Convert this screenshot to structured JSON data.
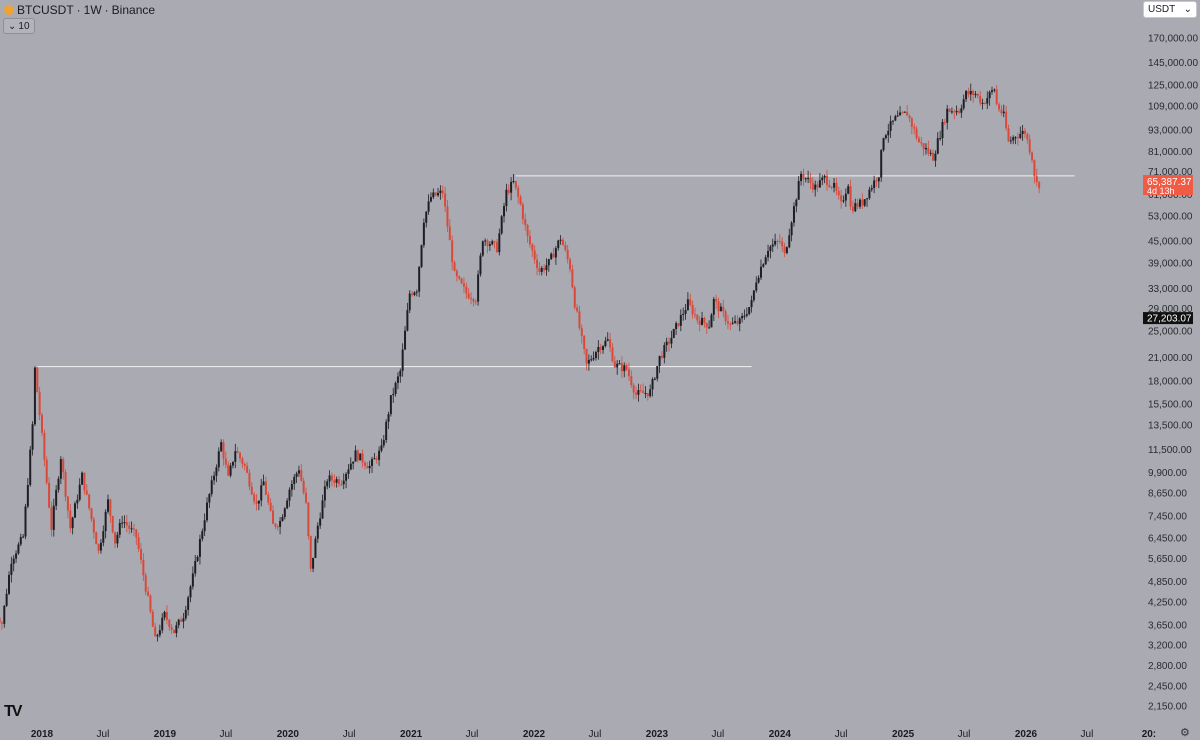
{
  "header": {
    "symbol": "BTCUSDT",
    "interval": "1W",
    "exchange": "Binance",
    "sep": "·",
    "interval_btn": "10"
  },
  "currency": "USDT",
  "price_label": {
    "price": "65,387.37",
    "countdown": "4d 13h",
    "color": "#ef5b45"
  },
  "crosshair_label": "27,203.07",
  "colors": {
    "up": "#1e1f24",
    "down": "#d9493a",
    "background": "#a9aab2",
    "level": "#f2f2f2"
  },
  "icons": {
    "tv_logo": "tradingview-logo-icon",
    "settings": "gear-icon",
    "chevron": "chevron-down-icon"
  },
  "chart_data": {
    "type": "candlestick",
    "y_scale": "log",
    "y_ticks": [
      170000,
      145000,
      125000,
      109000,
      93000,
      81000,
      71000,
      61000,
      53000,
      45000,
      39000,
      33000,
      29000,
      25000,
      21000,
      18000,
      15500,
      13500,
      11500,
      9900,
      8650,
      7450,
      6450,
      5650,
      4850,
      4250,
      3650,
      3200,
      2800,
      2450,
      2150
    ],
    "y_tick_labels": [
      "170,000.00",
      "145,000.00",
      "125,000.00",
      "109,000.00",
      "93,000.00",
      "81,000.00",
      "71,000.00",
      "61,000.00",
      "53,000.00",
      "45,000.00",
      "39,000.00",
      "33,000.00",
      "29,000.00",
      "25,000.00",
      "21,000.00",
      "18,000.00",
      "15,500.00",
      "13,500.00",
      "11,500.00",
      "9,900.00",
      "8,650.00",
      "7,450.00",
      "6,450.00",
      "5,650.00",
      "4,850.00",
      "4,250.00",
      "3,650.00",
      "3,200.00",
      "2,800.00",
      "2,450.00",
      "2,150.00"
    ],
    "x_ticks": [
      {
        "label": "2018",
        "date": "2018-01-01",
        "bold": true
      },
      {
        "label": "Jul",
        "date": "2018-07-01",
        "bold": false
      },
      {
        "label": "2019",
        "date": "2019-01-01",
        "bold": true
      },
      {
        "label": "Jul",
        "date": "2019-07-01",
        "bold": false
      },
      {
        "label": "2020",
        "date": "2020-01-01",
        "bold": true
      },
      {
        "label": "Jul",
        "date": "2020-07-01",
        "bold": false
      },
      {
        "label": "2021",
        "date": "2021-01-01",
        "bold": true
      },
      {
        "label": "Jul",
        "date": "2021-07-01",
        "bold": false
      },
      {
        "label": "2022",
        "date": "2022-01-01",
        "bold": true
      },
      {
        "label": "Jul",
        "date": "2022-07-01",
        "bold": false
      },
      {
        "label": "2023",
        "date": "2023-01-01",
        "bold": true
      },
      {
        "label": "Jul",
        "date": "2023-07-01",
        "bold": false
      },
      {
        "label": "2024",
        "date": "2024-01-01",
        "bold": true
      },
      {
        "label": "Jul",
        "date": "2024-07-01",
        "bold": false
      },
      {
        "label": "2025",
        "date": "2025-01-01",
        "bold": true
      },
      {
        "label": "Jul",
        "date": "2025-07-01",
        "bold": false
      },
      {
        "label": "2026",
        "date": "2026-01-01",
        "bold": true
      },
      {
        "label": "Jul",
        "date": "2026-07-01",
        "bold": false
      },
      {
        "label": "20:",
        "date": "2027-01-01",
        "bold": true
      }
    ],
    "anchors": [
      [
        "2017-08-14",
        4100
      ],
      [
        "2017-09-11",
        3700
      ],
      [
        "2017-10-09",
        5600
      ],
      [
        "2017-11-13",
        6500
      ],
      [
        "2017-12-11",
        13500
      ],
      [
        "2017-12-18",
        19500
      ],
      [
        "2018-01-01",
        14500
      ],
      [
        "2018-02-05",
        6900
      ],
      [
        "2018-03-05",
        11000
      ],
      [
        "2018-04-02",
        6900
      ],
      [
        "2018-05-07",
        9700
      ],
      [
        "2018-06-25",
        5900
      ],
      [
        "2018-07-23",
        8200
      ],
      [
        "2018-08-13",
        6300
      ],
      [
        "2018-09-03",
        7300
      ],
      [
        "2018-10-15",
        6500
      ],
      [
        "2018-11-19",
        4300
      ],
      [
        "2018-12-10",
        3300
      ],
      [
        "2019-01-07",
        3900
      ],
      [
        "2019-02-04",
        3500
      ],
      [
        "2019-03-04",
        3900
      ],
      [
        "2019-04-01",
        5000
      ],
      [
        "2019-05-13",
        8000
      ],
      [
        "2019-06-24",
        12000
      ],
      [
        "2019-07-15",
        9500
      ],
      [
        "2019-08-05",
        11500
      ],
      [
        "2019-09-02",
        10300
      ],
      [
        "2019-10-07",
        8000
      ],
      [
        "2019-10-28",
        9300
      ],
      [
        "2019-11-25",
        7000
      ],
      [
        "2019-12-16",
        7200
      ],
      [
        "2020-01-13",
        8900
      ],
      [
        "2020-02-10",
        10200
      ],
      [
        "2020-03-02",
        8000
      ],
      [
        "2020-03-16",
        5200
      ],
      [
        "2020-04-06",
        7000
      ],
      [
        "2020-05-04",
        9500
      ],
      [
        "2020-06-15",
        9400
      ],
      [
        "2020-07-27",
        11200
      ],
      [
        "2020-09-07",
        10300
      ],
      [
        "2020-10-12",
        11500
      ],
      [
        "2020-11-09",
        16000
      ],
      [
        "2020-12-07",
        19200
      ],
      [
        "2021-01-04",
        32000
      ],
      [
        "2021-01-25",
        33000
      ],
      [
        "2021-02-15",
        52000
      ],
      [
        "2021-03-08",
        60000
      ],
      [
        "2021-04-12",
        62000
      ],
      [
        "2021-05-17",
        36000
      ],
      [
        "2021-06-21",
        32000
      ],
      [
        "2021-07-19",
        31000
      ],
      [
        "2021-08-09",
        46000
      ],
      [
        "2021-09-20",
        43000
      ],
      [
        "2021-10-18",
        62000
      ],
      [
        "2021-11-08",
        66000
      ],
      [
        "2021-11-29",
        57000
      ],
      [
        "2021-12-20",
        46000
      ],
      [
        "2022-01-24",
        37000
      ],
      [
        "2022-02-21",
        39000
      ],
      [
        "2022-03-28",
        46000
      ],
      [
        "2022-04-25",
        38000
      ],
      [
        "2022-05-09",
        30000
      ],
      [
        "2022-06-13",
        20000
      ],
      [
        "2022-07-18",
        22500
      ],
      [
        "2022-08-15",
        23500
      ],
      [
        "2022-09-05",
        20000
      ],
      [
        "2022-10-10",
        19500
      ],
      [
        "2022-11-07",
        16500
      ],
      [
        "2022-12-19",
        16800
      ],
      [
        "2023-01-16",
        21000
      ],
      [
        "2023-02-20",
        24000
      ],
      [
        "2023-03-13",
        26500
      ],
      [
        "2023-04-10",
        30000
      ],
      [
        "2023-05-08",
        27000
      ],
      [
        "2023-06-12",
        26000
      ],
      [
        "2023-06-26",
        30500
      ],
      [
        "2023-08-14",
        26000
      ],
      [
        "2023-09-11",
        26500
      ],
      [
        "2023-10-16",
        30000
      ],
      [
        "2023-10-30",
        35000
      ],
      [
        "2023-12-04",
        43000
      ],
      [
        "2024-01-08",
        45000
      ],
      [
        "2024-01-22",
        41000
      ],
      [
        "2024-02-12",
        52000
      ],
      [
        "2024-03-11",
        70000
      ],
      [
        "2024-04-22",
        64000
      ],
      [
        "2024-05-20",
        68000
      ],
      [
        "2024-06-17",
        64000
      ],
      [
        "2024-07-08",
        57000
      ],
      [
        "2024-07-29",
        66000
      ],
      [
        "2024-08-05",
        56000
      ],
      [
        "2024-09-09",
        58000
      ],
      [
        "2024-09-30",
        63000
      ],
      [
        "2024-10-28",
        70000
      ],
      [
        "2024-11-11",
        90000
      ],
      [
        "2024-12-16",
        100000
      ],
      [
        "2025-01-20",
        104000
      ],
      [
        "2025-02-24",
        86000
      ],
      [
        "2025-04-07",
        78000
      ],
      [
        "2025-05-19",
        106000
      ],
      [
        "2025-06-23",
        106000
      ],
      [
        "2025-07-14",
        118000
      ],
      [
        "2025-08-11",
        118000
      ],
      [
        "2025-09-01",
        111000
      ],
      [
        "2025-10-06",
        122000
      ],
      [
        "2025-10-13",
        110000
      ],
      [
        "2025-11-03",
        102000
      ],
      [
        "2025-11-17",
        86000
      ],
      [
        "2025-12-08",
        90000
      ],
      [
        "2026-01-05",
        92000
      ],
      [
        "2026-01-26",
        78000
      ],
      [
        "2026-02-02",
        70000
      ],
      [
        "2026-02-09",
        65387
      ]
    ],
    "levels": [
      {
        "price": 19800,
        "from": "2017-12-18",
        "to": "2023-10-09"
      },
      {
        "price": 69000,
        "from": "2021-11-08",
        "to": "2026-05-25"
      }
    ]
  }
}
